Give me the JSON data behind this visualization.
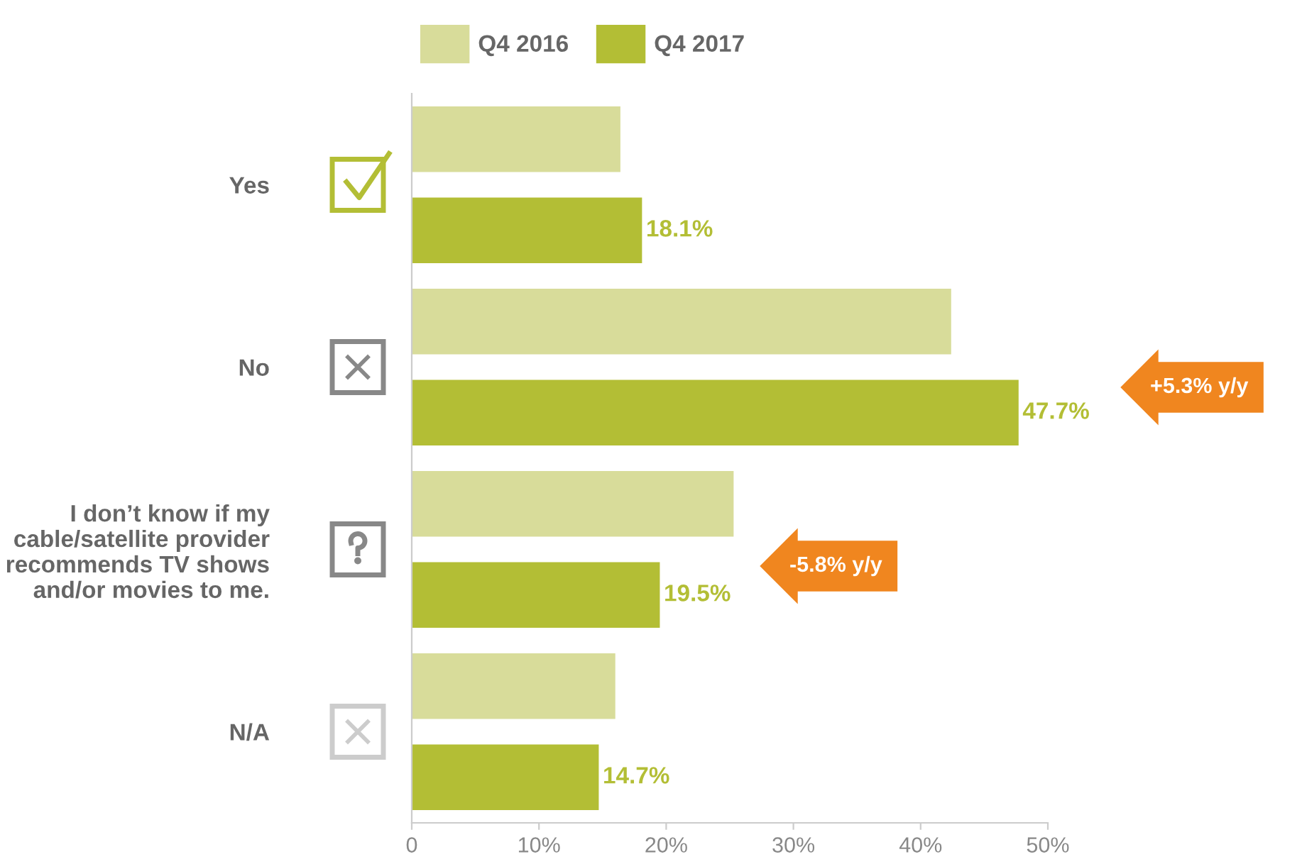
{
  "chart_data": {
    "type": "bar",
    "orientation": "horizontal",
    "categories": [
      "Yes",
      "No",
      "I don’t know if my\ncable/satellite provider\nrecommends TV shows\nand/or movies to me.",
      "N/A"
    ],
    "series": [
      {
        "name": "Q4 2016",
        "color": "#d8dc9a",
        "values": [
          16.4,
          42.4,
          25.3,
          16.0
        ]
      },
      {
        "name": "Q4 2017",
        "color": "#b3be35",
        "values": [
          18.1,
          47.7,
          19.5,
          14.7
        ],
        "value_labels": [
          "18.1%",
          "47.7%",
          "19.5%",
          "14.7%"
        ]
      }
    ],
    "xlim": [
      0,
      50
    ],
    "xticks": [
      0,
      {
        "value": 10,
        "label": "10%"
      },
      {
        "value": 20,
        "label": "20%"
      },
      {
        "value": 30,
        "label": "30%"
      },
      {
        "value": 40,
        "label": "40%"
      },
      {
        "value": 50,
        "label": "50%"
      }
    ],
    "grid": false,
    "legend": "top",
    "annotations": [
      "+5.3% y/y",
      "-5.8% y/y"
    ]
  }
}
